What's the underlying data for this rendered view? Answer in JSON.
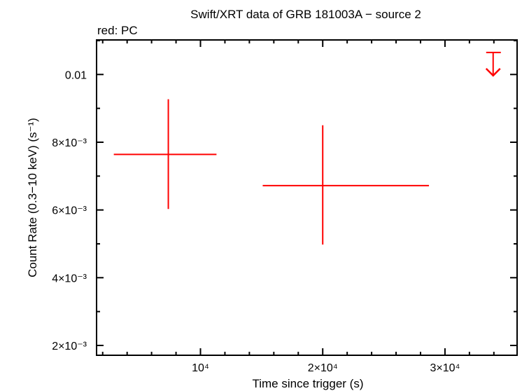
{
  "chart_data": {
    "type": "scatter",
    "title": "Swift/XRT data of GRB 181003A − source 2",
    "subtitle": "red: PC",
    "xlabel": "Time since trigger (s)",
    "ylabel": "Count Rate (0.3−10 keV) (s⁻¹)",
    "xlim": [
      1500,
      35900
    ],
    "ylim": [
      0.00171,
      0.01102
    ],
    "x_scale": "linear",
    "y_scale": "linear",
    "grid": false,
    "x_ticks": [
      {
        "value": 10000,
        "label": "10⁴"
      },
      {
        "value": 20000,
        "label": "2×10⁴"
      },
      {
        "value": 30000,
        "label": "3×10⁴"
      }
    ],
    "y_ticks": [
      {
        "value": 0.01,
        "label": "0.01"
      },
      {
        "value": 0.008,
        "label": "8×10⁻³"
      },
      {
        "value": 0.006,
        "label": "6×10⁻³"
      },
      {
        "value": 0.004,
        "label": "4×10⁻³"
      },
      {
        "value": 0.002,
        "label": "2×10⁻³"
      }
    ],
    "series": [
      {
        "color": "#ff0000",
        "points": [
          {
            "x": 7370,
            "x_lo": 2910,
            "x_hi": 11310,
            "y": 0.00764,
            "y_lo": 0.00603,
            "y_hi": 0.00927
          },
          {
            "x": 20000,
            "x_lo": 15090,
            "x_hi": 28690,
            "y": 0.00672,
            "y_lo": 0.00498,
            "y_hi": 0.0085
          }
        ],
        "upper_limits": [
          {
            "x": 33940,
            "x_lo": 33370,
            "x_hi": 34570,
            "y": 0.01065
          }
        ]
      }
    ]
  }
}
